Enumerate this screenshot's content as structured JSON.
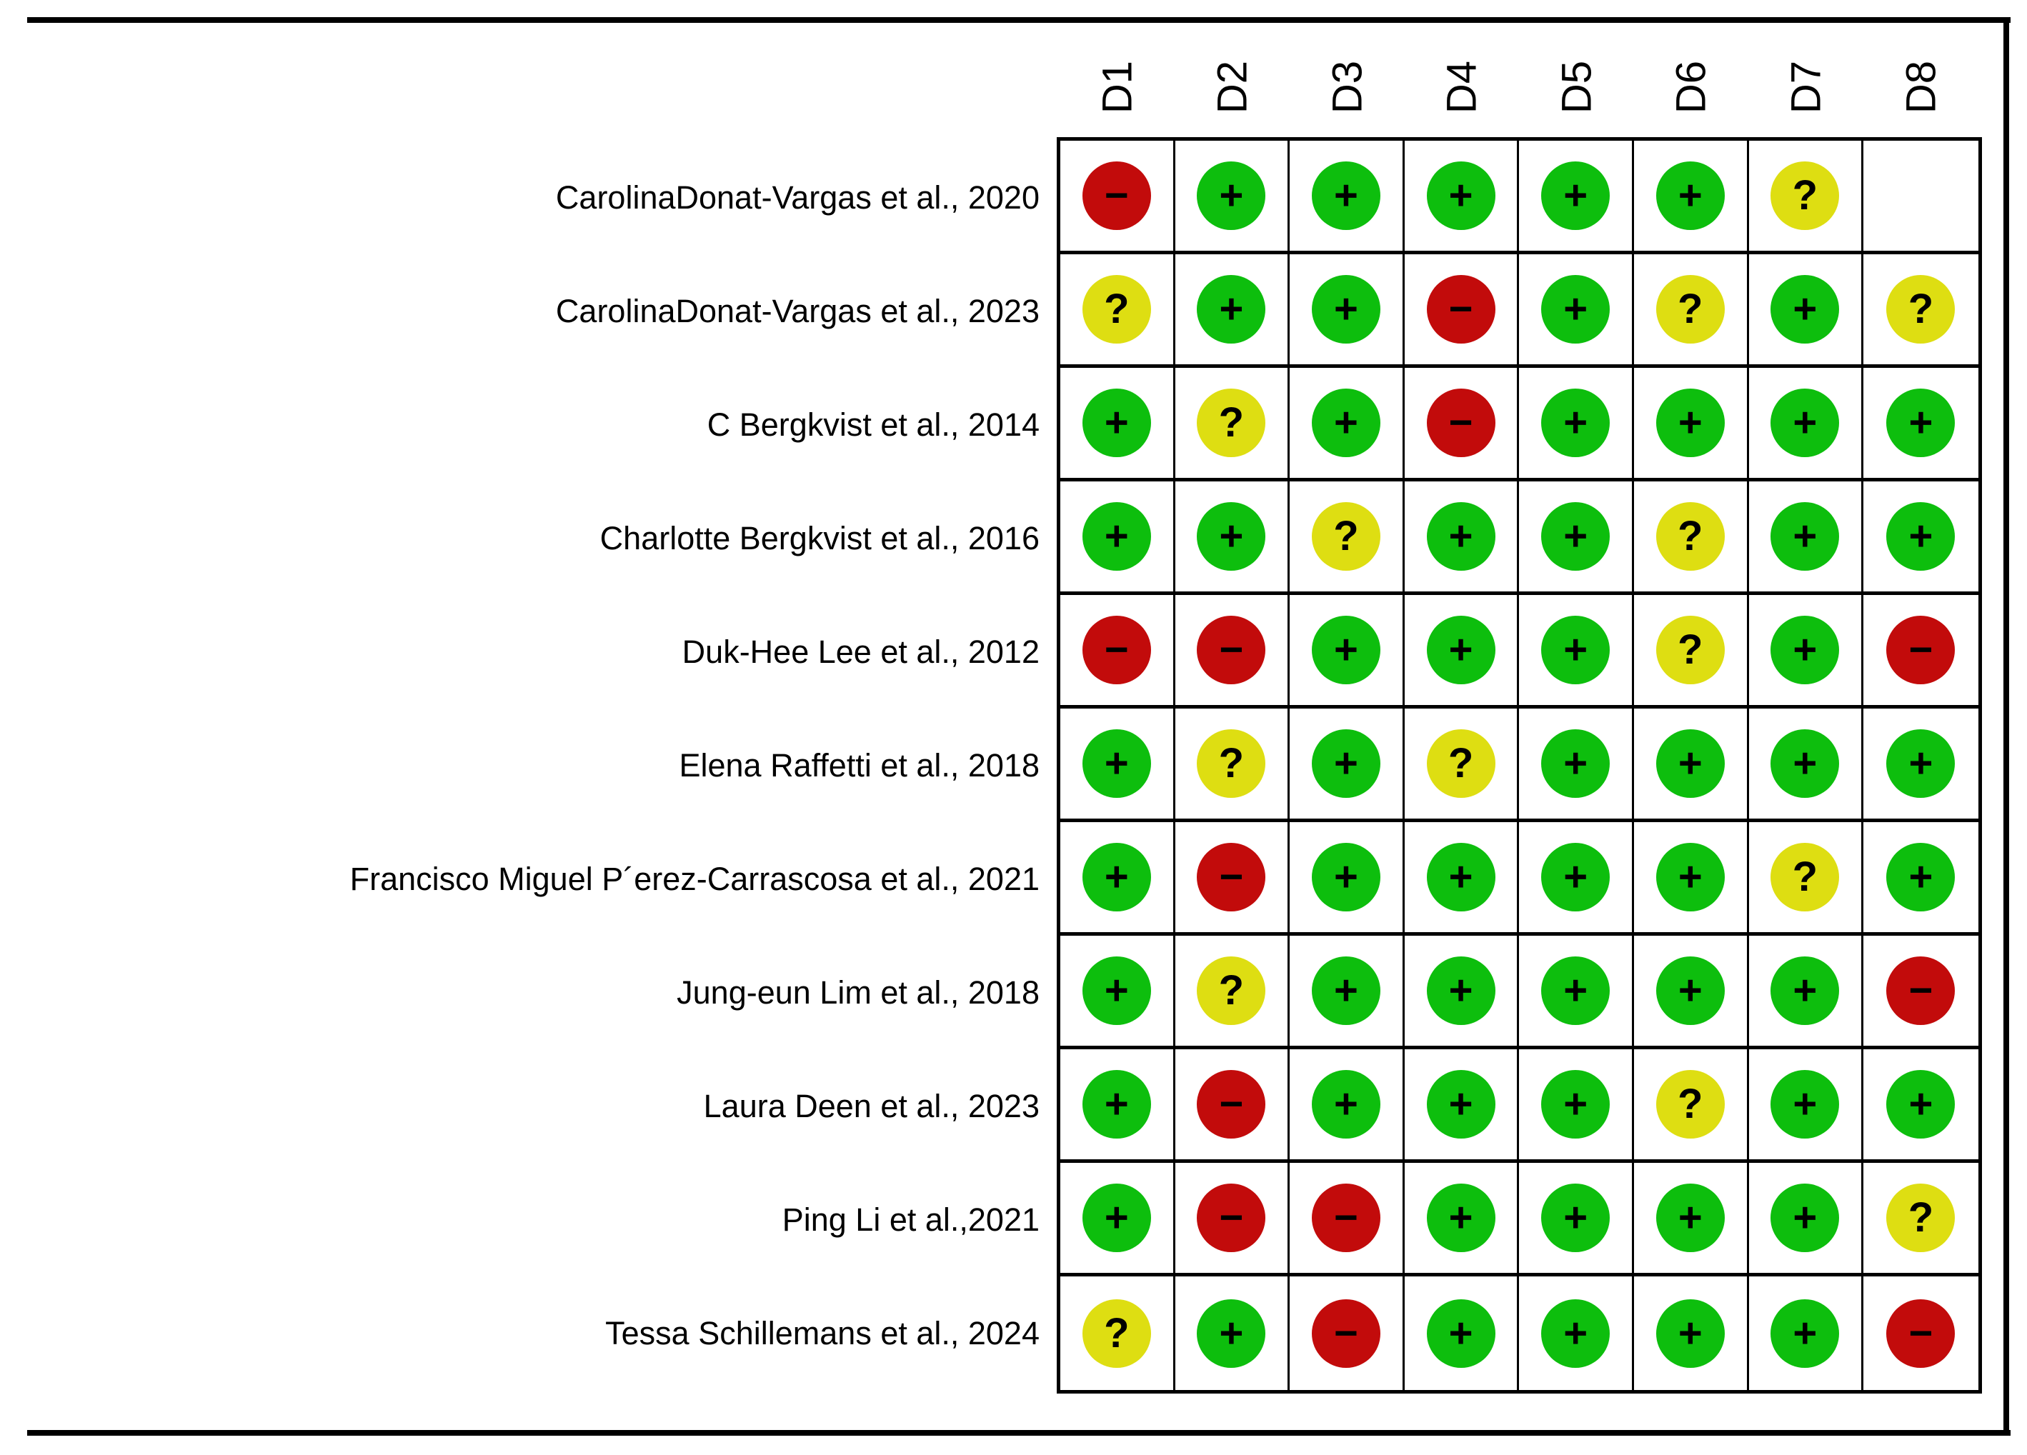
{
  "chart_data": {
    "type": "heatmap",
    "description_title": "",
    "columns": [
      "D1",
      "D2",
      "D3",
      "D4",
      "D5",
      "D6",
      "D7",
      "D8"
    ],
    "rows": [
      {
        "label": "CarolinaDonat-Vargas  et al., 2020",
        "cells": [
          "-",
          "+",
          "+",
          "+",
          "+",
          "+",
          "?",
          ""
        ]
      },
      {
        "label": "CarolinaDonat-Vargas  et al., 2023",
        "cells": [
          "?",
          "+",
          "+",
          "-",
          "+",
          "?",
          "+",
          "?"
        ]
      },
      {
        "label": "C Bergkvist et al.,  2014",
        "cells": [
          "+",
          "?",
          "+",
          "-",
          "+",
          "+",
          "+",
          "+"
        ]
      },
      {
        "label": "Charlotte Bergkvist  et al., 2016",
        "cells": [
          "+",
          "+",
          "?",
          "+",
          "+",
          "?",
          "+",
          "+"
        ]
      },
      {
        "label": "Duk-Hee Lee  et al., 2012",
        "cells": [
          "-",
          "-",
          "+",
          "+",
          "+",
          "?",
          "+",
          "-"
        ]
      },
      {
        "label": "Elena Raffetti  et al., 2018",
        "cells": [
          "+",
          "?",
          "+",
          "?",
          "+",
          "+",
          "+",
          "+"
        ]
      },
      {
        "label": "Francisco Miguel P´erez-Carrascosa et al., 2021",
        "cells": [
          "+",
          "-",
          "+",
          "+",
          "+",
          "+",
          "?",
          "+"
        ]
      },
      {
        "label": "Jung-eun Lim et al., 2018",
        "cells": [
          "+",
          "?",
          "+",
          "+",
          "+",
          "+",
          "+",
          "-"
        ]
      },
      {
        "label": "Laura Deen et al., 2023",
        "cells": [
          "+",
          "-",
          "+",
          "+",
          "+",
          "?",
          "+",
          "+"
        ]
      },
      {
        "label": "Ping Li  et al.,2021",
        "cells": [
          "+",
          "-",
          "-",
          "+",
          "+",
          "+",
          "+",
          "?"
        ]
      },
      {
        "label": "Tessa Schillemans et al., 2024",
        "cells": [
          "?",
          "+",
          "-",
          "+",
          "+",
          "+",
          "+",
          "-"
        ]
      }
    ],
    "symbol_colors": {
      "+": "#0DBE0D",
      "-": "#C20B0B",
      "?": "#DEDE12"
    },
    "symbol_glyphs": {
      "+": "+",
      "-": "−",
      "?": "?"
    },
    "layout": {
      "grid_on": true,
      "header_rotation_deg": -90
    }
  }
}
